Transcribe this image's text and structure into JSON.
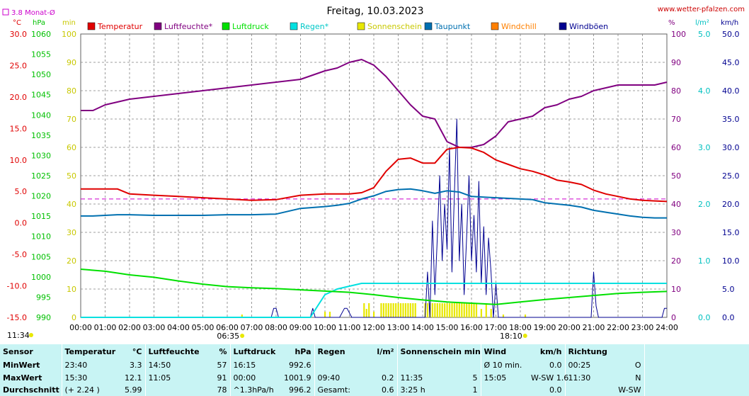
{
  "site": "www.wetter-pfalzen.com",
  "colors": {
    "temperature": "#e00000",
    "humidity": "#800080",
    "pressure": "#00e000",
    "rain": "#00e0e0",
    "sunshine": "#e8e800",
    "dewpoint": "#0070b0",
    "windchill": "#ff8000",
    "gusts": "#000090",
    "avg": "#cc00cc",
    "grid": "#808080",
    "table_bg": "#c8f4f4"
  },
  "chart_data": {
    "type": "line",
    "title": "Freitag, 10.03.2023",
    "monthly_avg_label": "3.8 Monat-Ø",
    "monthly_avg_temp": 3.8,
    "x_ticks": [
      "00:00",
      "01:00",
      "02:00",
      "03:00",
      "04:00",
      "05:00",
      "06:00",
      "07:00",
      "08:00",
      "09:00",
      "10:00",
      "11:00",
      "12:00",
      "13:00",
      "14:00",
      "15:00",
      "16:00",
      "17:00",
      "18:00",
      "19:00",
      "20:00",
      "21:00",
      "22:00",
      "23:00",
      "24:00"
    ],
    "sunrise": "06:35",
    "sunset": "18:10",
    "legend": [
      {
        "name": "Temperatur",
        "color": "#e00000"
      },
      {
        "name": "Luftfeuchte*",
        "color": "#800080"
      },
      {
        "name": "Luftdruck",
        "color": "#00e000"
      },
      {
        "name": "Regen*",
        "color": "#00e0e0"
      },
      {
        "name": "Sonnenschein",
        "color": "#e8e800"
      },
      {
        "name": "Taupunkt",
        "color": "#0070b0"
      },
      {
        "name": "Windchill",
        "color": "#ff8000"
      },
      {
        "name": "Windböen",
        "color": "#000090"
      }
    ],
    "axes": {
      "temp": {
        "unit": "°C",
        "range": [
          -15,
          30
        ],
        "ticks": [
          "30.0",
          "25.0",
          "20.0",
          "15.0",
          "10.0",
          "5.0",
          "0.0",
          "-5.0",
          "-10.0",
          "-15.0"
        ]
      },
      "pressure": {
        "unit": "hPa",
        "range": [
          990,
          1060
        ],
        "ticks": [
          "1060",
          "1055",
          "1050",
          "1045",
          "1040",
          "1035",
          "1030",
          "1025",
          "1020",
          "1015",
          "1010",
          "1005",
          "1000",
          "995",
          "990"
        ]
      },
      "sunshine": {
        "unit": "min",
        "range": [
          0,
          100
        ],
        "ticks": [
          "100",
          "90",
          "80",
          "70",
          "60",
          "50",
          "40",
          "30",
          "20",
          "10",
          "0"
        ]
      },
      "humidity": {
        "unit": "%",
        "range": [
          0,
          100
        ],
        "ticks": [
          "100",
          "90",
          "80",
          "70",
          "60",
          "50",
          "40",
          "30",
          "20",
          "10",
          "0"
        ]
      },
      "rain": {
        "unit": "l/m²",
        "range": [
          0,
          5
        ],
        "ticks": [
          "5.0",
          "4.0",
          "3.0",
          "2.0",
          "1.0",
          "0.0"
        ]
      },
      "wind": {
        "unit": "km/h",
        "range": [
          0,
          50
        ],
        "ticks": [
          "50.0",
          "45.0",
          "40.0",
          "35.0",
          "30.0",
          "25.0",
          "20.0",
          "15.0",
          "10.0",
          "5.0",
          "0.0"
        ]
      }
    },
    "series": [
      {
        "name": "Temperatur",
        "axis": "temp",
        "x": [
          0,
          0.5,
          1,
          1.5,
          2,
          3,
          4,
          5,
          6,
          7,
          8,
          9,
          10,
          10.5,
          11,
          11.5,
          12,
          12.5,
          13,
          13.5,
          14,
          14.5,
          15,
          15.5,
          16,
          16.5,
          17,
          17.5,
          18,
          18.5,
          19,
          19.5,
          20,
          20.5,
          21,
          21.5,
          22,
          22.5,
          23,
          23.5,
          24
        ],
        "y": [
          5.4,
          5.4,
          5.4,
          5.4,
          4.6,
          4.4,
          4.2,
          4.0,
          3.8,
          3.6,
          3.7,
          4.4,
          4.6,
          4.6,
          4.6,
          4.8,
          5.6,
          8.2,
          10.1,
          10.3,
          9.5,
          9.5,
          11.7,
          12.0,
          11.9,
          11.2,
          10.0,
          9.3,
          8.6,
          8.2,
          7.6,
          6.8,
          6.5,
          6.1,
          5.2,
          4.6,
          4.2,
          3.8,
          3.6,
          3.5,
          3.4
        ]
      },
      {
        "name": "Luftfeuchte*",
        "axis": "humidity",
        "x": [
          0,
          0.5,
          1,
          1.5,
          2,
          3,
          4,
          5,
          6,
          7,
          8,
          9,
          10,
          10.5,
          11,
          11.5,
          12,
          12.5,
          13,
          13.5,
          14,
          14.5,
          15,
          15.5,
          16,
          16.5,
          17,
          17.5,
          18,
          18.5,
          19,
          19.5,
          20,
          20.5,
          21,
          21.5,
          22,
          22.5,
          23,
          23.5,
          24
        ],
        "y": [
          73,
          73,
          75,
          76,
          77,
          78,
          79,
          80,
          81,
          82,
          83,
          84,
          87,
          88,
          90,
          91,
          89,
          85,
          80,
          75,
          71,
          70,
          62,
          60,
          60,
          61,
          64,
          69,
          70,
          71,
          74,
          75,
          77,
          78,
          80,
          81,
          82,
          82,
          82,
          82,
          83
        ]
      },
      {
        "name": "Luftdruck",
        "axis": "pressure",
        "x": [
          0,
          1,
          2,
          3,
          4,
          5,
          6,
          7,
          8,
          9,
          10,
          11,
          12,
          13,
          14,
          15,
          16,
          17,
          18,
          19,
          20,
          21,
          22,
          23,
          24
        ],
        "y": [
          1001.9,
          1001.4,
          1000.5,
          999.9,
          999.0,
          998.2,
          997.6,
          997.3,
          997.1,
          996.8,
          996.5,
          996.2,
          995.6,
          994.9,
          994.3,
          993.8,
          993.5,
          993.2,
          993.8,
          994.4,
          994.9,
          995.4,
          995.9,
          996.2,
          996.4
        ]
      },
      {
        "name": "Regen*",
        "axis": "rain",
        "x": [
          0,
          9.4,
          9.7,
          10,
          10.5,
          11,
          11.5,
          12,
          13,
          14,
          15,
          16,
          17,
          17.2,
          17.5,
          18,
          19,
          20,
          21,
          22,
          23,
          24
        ],
        "y": [
          0,
          0,
          0.2,
          0.4,
          0.5,
          0.55,
          0.6,
          0.6,
          0.6,
          0.6,
          0.6,
          0.6,
          0.6,
          0.6,
          0.6,
          0.6,
          0.6,
          0.6,
          0.6,
          0.6,
          0.6,
          0.6
        ]
      },
      {
        "name": "Taupunkt",
        "axis": "temp",
        "x": [
          0,
          0.5,
          1,
          1.5,
          2,
          3,
          4,
          5,
          6,
          7,
          8,
          9,
          10,
          10.5,
          11,
          11.5,
          12,
          12.5,
          13,
          13.5,
          14,
          14.5,
          15,
          15.5,
          16,
          16.5,
          17,
          17.5,
          18,
          18.5,
          19,
          19.5,
          20,
          20.5,
          21,
          21.5,
          22,
          22.5,
          23,
          23.5,
          24
        ],
        "y": [
          1.1,
          1.1,
          1.2,
          1.3,
          1.3,
          1.2,
          1.2,
          1.2,
          1.3,
          1.3,
          1.4,
          2.3,
          2.6,
          2.8,
          3.1,
          3.8,
          4.3,
          5.0,
          5.3,
          5.4,
          5.1,
          4.7,
          5.1,
          4.9,
          4.2,
          4.1,
          4.0,
          3.9,
          3.8,
          3.7,
          3.2,
          3.0,
          2.8,
          2.5,
          2.0,
          1.7,
          1.4,
          1.1,
          0.9,
          0.8,
          0.8
        ]
      },
      {
        "name": "Windböen",
        "axis": "wind",
        "x": [
          0,
          7.8,
          7.9,
          8,
          8.1,
          9.4,
          9.5,
          9.6,
          10,
          10.6,
          10.8,
          10.9,
          11.1,
          11.2,
          14.1,
          14.2,
          14.3,
          14.4,
          14.5,
          14.6,
          14.7,
          14.8,
          14.9,
          15.0,
          15.1,
          15.2,
          15.3,
          15.4,
          15.5,
          15.6,
          15.7,
          15.8,
          15.9,
          16.0,
          16.1,
          16.2,
          16.3,
          16.4,
          16.5,
          16.6,
          16.7,
          16.8,
          16.9,
          17.0,
          17.1,
          17.5,
          20.9,
          21.0,
          21.1,
          21.2,
          23.8,
          23.9,
          24
        ],
        "y": [
          0,
          0,
          1.6,
          1.6,
          0,
          0,
          1.6,
          0,
          0,
          0,
          1.6,
          1.6,
          0,
          0,
          0,
          8,
          0,
          17,
          4,
          14,
          25,
          10,
          20,
          12,
          30,
          8,
          22,
          35,
          10,
          20,
          4,
          14,
          25,
          10,
          18,
          8,
          24,
          6,
          16,
          4,
          14,
          8,
          0,
          6,
          0,
          0,
          0,
          8,
          2,
          0,
          0,
          1.6,
          1.6
        ]
      },
      {
        "name": "Sonnenschein",
        "axis": "sunshine",
        "type": "bar",
        "x": [
          6.6,
          10.0,
          10.2,
          11.6,
          11.7,
          11.8,
          12.0,
          12.3,
          12.4,
          12.5,
          12.6,
          12.7,
          12.8,
          12.9,
          13.0,
          13.1,
          13.2,
          13.3,
          13.4,
          13.5,
          13.6,
          13.7,
          14.1,
          14.2,
          14.3,
          14.4,
          14.5,
          14.6,
          14.7,
          14.8,
          14.9,
          15.0,
          15.1,
          15.2,
          15.3,
          15.4,
          15.5,
          15.6,
          15.7,
          15.8,
          15.9,
          16.0,
          16.1,
          16.2,
          16.4,
          16.6,
          16.8,
          17.3,
          18.2
        ],
        "y": [
          1,
          2,
          2,
          5,
          3,
          5,
          2,
          5,
          5,
          5,
          5,
          5,
          5,
          5,
          5,
          5,
          5,
          5,
          5,
          5,
          5,
          5,
          5,
          5,
          5,
          5,
          5,
          5,
          5,
          5,
          5,
          5,
          5,
          5,
          5,
          5,
          5,
          5,
          5,
          5,
          5,
          5,
          5,
          5,
          3,
          5,
          3,
          1,
          1
        ]
      }
    ]
  },
  "stats": {
    "headers": {
      "sensor": "Sensor",
      "temp": "Temperatur",
      "temp_unit": "°C",
      "hum": "Luftfeuchte",
      "hum_unit": "%",
      "press": "Luftdruck",
      "press_unit": "hPa",
      "rain": "Regen",
      "rain_unit": "l/m²",
      "sun": "Sonnenschein min",
      "wind": "Wind",
      "wind_unit": "km/h",
      "dir": "Richtung"
    },
    "rows": [
      {
        "label": "MinWert",
        "t_time": "23:40",
        "t_val": "3.3",
        "h_time": "14:50",
        "h_val": "57",
        "p_time": "16:15",
        "p_val": "992.6",
        "r_time": "",
        "r_val": "",
        "s_time": "",
        "s_val": "",
        "w_time": "Ø 10 min.",
        "w_val": "0.0",
        "d_time": "00:25",
        "d_val": "O"
      },
      {
        "label": "MaxWert",
        "t_time": "15:30",
        "t_val": "12.1",
        "h_time": "11:05",
        "h_val": "91",
        "p_time": "00:00",
        "p_val": "1001.9",
        "r_time": "09:40",
        "r_val": "0.2",
        "s_time": "11:35",
        "s_val": "5",
        "w_time": "15:05",
        "w_val": "W-SW 1.6",
        "d_time": "11:30",
        "d_val": "N"
      },
      {
        "label": "Durchschnitt",
        "t_time": "(+ 2.24 )",
        "t_val": "5.99",
        "h_time": "",
        "h_val": "78",
        "p_time": "^1.3hPa/h",
        "p_val": "996.2",
        "r_time": "Gesamt:",
        "r_val": "0.6",
        "s_time": "3:25 h",
        "s_val": "1",
        "w_time": "",
        "w_val": "0.0",
        "d_time": "",
        "d_val": "W-SW"
      }
    ]
  },
  "footer_time": "11:34"
}
